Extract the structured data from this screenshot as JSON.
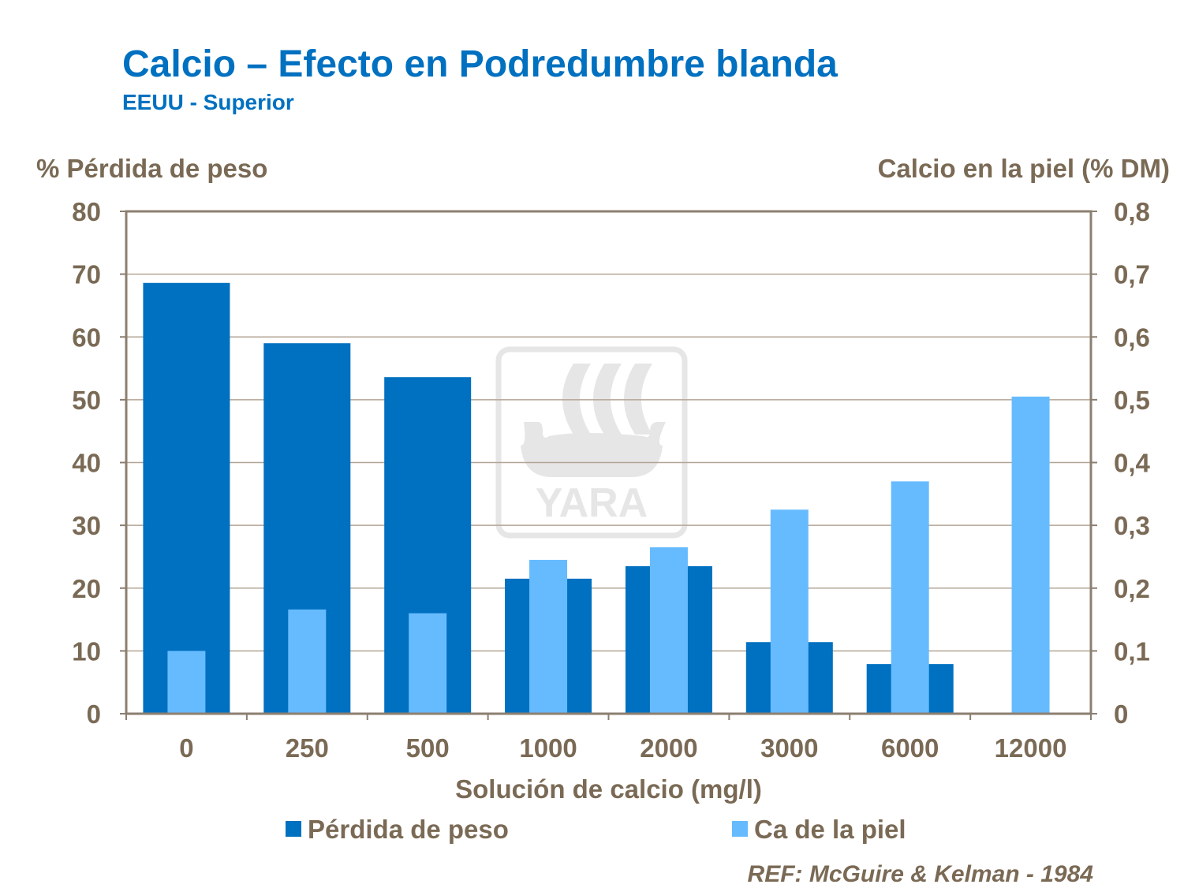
{
  "chart_data": {
    "type": "bar",
    "title": "Calcio – Efecto en Podredumbre blanda",
    "subtitle": "EEUU - Superior",
    "xlabel": "Solución de calcio (mg/l)",
    "ylabel": "% Pérdida de peso",
    "y2label": "Calcio en la piel  (% DM)",
    "categories": [
      "0",
      "250",
      "500",
      "1000",
      "2000",
      "3000",
      "6000",
      "12000"
    ],
    "ylim": [
      0,
      80
    ],
    "y2lim": [
      0,
      0.8
    ],
    "yticks": [
      "0",
      "10",
      "20",
      "30",
      "40",
      "50",
      "60",
      "70",
      "80"
    ],
    "y2ticks": [
      "0",
      "0,1",
      "0,2",
      "0,3",
      "0,4",
      "0,5",
      "0,6",
      "0,7",
      "0,8"
    ],
    "grid": true,
    "legend_position": "bottom",
    "series": [
      {
        "name": "Pérdida de peso",
        "axis": "left",
        "color": "#0070c0",
        "values": [
          68.6,
          59.0,
          53.6,
          21.5,
          23.5,
          11.4,
          7.9,
          0
        ]
      },
      {
        "name": "Ca de la piel",
        "axis": "right",
        "color": "#66bbff",
        "values": [
          0.1,
          0.166,
          0.16,
          0.245,
          0.265,
          0.325,
          0.37,
          0.505
        ]
      }
    ]
  },
  "reference": "REF: McGuire & Kelman - 1984",
  "watermark": "YARA"
}
